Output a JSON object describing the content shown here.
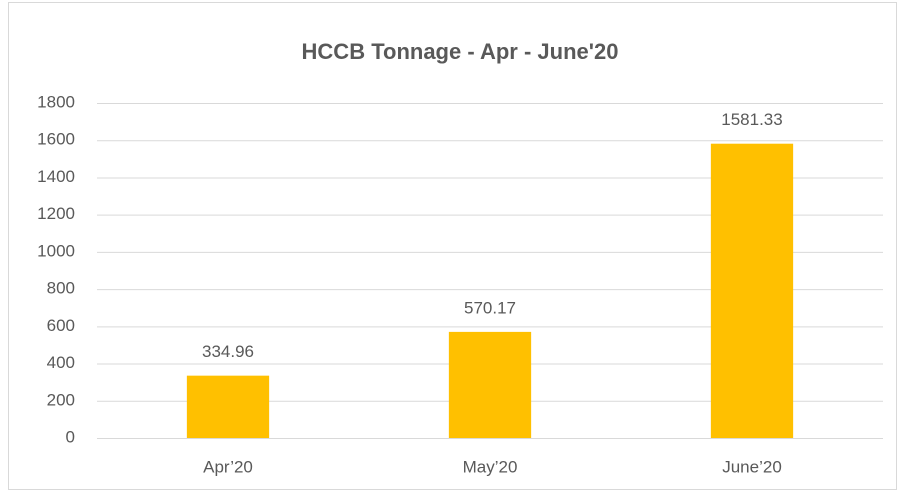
{
  "chart_data": {
    "type": "bar",
    "title": "HCCB Tonnage - Apr - June'20",
    "categories": [
      "Apr’20",
      "May’20",
      "June’20"
    ],
    "values": [
      334.96,
      570.17,
      1581.33
    ],
    "color": "#ffc000",
    "ylim": [
      0,
      1800
    ],
    "yticks": [
      0,
      200,
      400,
      600,
      800,
      1000,
      1200,
      1400,
      1600,
      1800
    ],
    "grid": true,
    "data_labels": true
  }
}
